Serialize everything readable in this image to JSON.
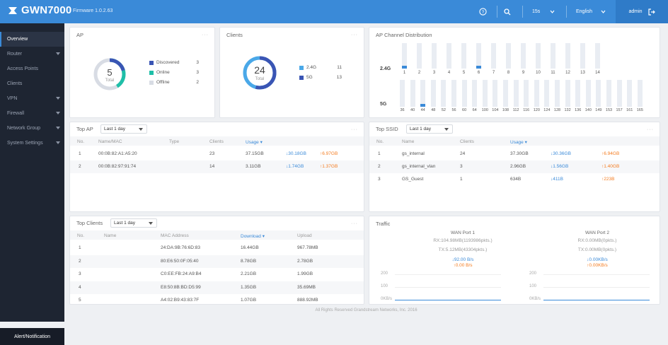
{
  "brand": {
    "name": "GWN7000",
    "firmware": "Firmware 1.0.2.63"
  },
  "topbar": {
    "refresh": "15s",
    "language": "English",
    "user": "admin"
  },
  "sidebar": {
    "items": [
      {
        "label": "Overview",
        "active": true,
        "caret": false
      },
      {
        "label": "Router",
        "caret": true
      },
      {
        "label": "Access Points",
        "caret": false
      },
      {
        "label": "Clients",
        "caret": false
      },
      {
        "label": "VPN",
        "caret": true
      },
      {
        "label": "Firewall",
        "caret": true
      },
      {
        "label": "Network Group",
        "caret": true
      },
      {
        "label": "System Settings",
        "caret": true
      }
    ],
    "alert": "Alert/Notification"
  },
  "ap": {
    "title": "AP",
    "total": "5",
    "total_label": "Total",
    "legend": [
      {
        "label": "Discovered",
        "value": "3",
        "color": "#3a55b4"
      },
      {
        "label": "Online",
        "value": "3",
        "color": "#1fbfa8"
      },
      {
        "label": "Offline",
        "value": "2",
        "color": "#d8dce4"
      }
    ]
  },
  "clients": {
    "title": "Clients",
    "total": "24",
    "total_label": "Total",
    "legend": [
      {
        "label": "2.4G",
        "value": "11",
        "color": "#4aa8e8"
      },
      {
        "label": "5G",
        "value": "13",
        "color": "#3a55b4"
      }
    ]
  },
  "channel": {
    "title": "AP Channel Distribution",
    "band24": "2.4G",
    "band5": "5G",
    "ch24": [
      "1",
      "2",
      "3",
      "4",
      "5",
      "6",
      "7",
      "8",
      "9",
      "10",
      "11",
      "12",
      "13",
      "14"
    ],
    "ch24_counts": [
      1,
      0,
      0,
      0,
      0,
      1,
      0,
      0,
      0,
      0,
      0,
      0,
      0,
      0
    ],
    "ch5": [
      "36",
      "40",
      "44",
      "48",
      "52",
      "56",
      "60",
      "64",
      "100",
      "104",
      "108",
      "112",
      "116",
      "120",
      "124",
      "128",
      "132",
      "136",
      "140",
      "149",
      "153",
      "157",
      "161",
      "165"
    ],
    "ch5_counts": [
      0,
      0,
      1,
      0,
      0,
      0,
      0,
      0,
      0,
      0,
      0,
      0,
      0,
      0,
      0,
      0,
      0,
      0,
      0,
      0,
      0,
      0,
      0,
      0
    ]
  },
  "top_ap": {
    "title": "Top AP",
    "range": "Last 1 day",
    "columns": [
      "No.",
      "Name/MAC",
      "Type",
      "Clients",
      "Usage ▾"
    ],
    "rows": [
      {
        "no": "1",
        "name": "00:0B:82:A1:A5:20",
        "type": "",
        "clients": "23",
        "usage": "37.15GB",
        "down": "↓30.18GB",
        "up": "↑6.97GB"
      },
      {
        "no": "2",
        "name": "00:0B:82:97:91:74",
        "type": "",
        "clients": "14",
        "usage": "3.11GB",
        "down": "↓1.74GB",
        "up": "↑1.37GB"
      }
    ]
  },
  "top_ssid": {
    "title": "Top SSID",
    "range": "Last 1 day",
    "columns": [
      "No.",
      "Name",
      "Clients",
      "Usage ▾"
    ],
    "rows": [
      {
        "no": "1",
        "name": "gs_internal",
        "clients": "24",
        "usage": "37.30GB",
        "down": "↓30.36GB",
        "up": "↑6.94GB"
      },
      {
        "no": "2",
        "name": "gs_internal_vlan",
        "clients": "3",
        "usage": "2.96GB",
        "down": "↓1.56GB",
        "up": "↑1.40GB"
      },
      {
        "no": "3",
        "name": "GS_Guest",
        "clients": "1",
        "usage": "634B",
        "down": "↓411B",
        "up": "↑223B"
      }
    ]
  },
  "top_clients": {
    "title": "Top Clients",
    "range": "Last 1 day",
    "columns": [
      "No.",
      "Name",
      "MAC Address",
      "Download ▾",
      "Upload"
    ],
    "rows": [
      {
        "no": "1",
        "name": "",
        "mac": "24:DA:9B:76:6D:83",
        "down": "16.44GB",
        "up": "967.78MB"
      },
      {
        "no": "2",
        "name": "",
        "mac": "80:E6:50:0F:05:40",
        "down": "8.78GB",
        "up": "2.78GB"
      },
      {
        "no": "3",
        "name": "",
        "mac": "C0:EE:FB:24:A9:B4",
        "down": "2.21GB",
        "up": "1.99GB"
      },
      {
        "no": "4",
        "name": "",
        "mac": "E8:50:8B:BD:D5:99",
        "down": "1.35GB",
        "up": "35.69MB"
      },
      {
        "no": "5",
        "name": "",
        "mac": "A4:02:B9:43:83:7F",
        "down": "1.07GB",
        "up": "888.92MB"
      }
    ]
  },
  "traffic": {
    "title": "Traffic",
    "ports": [
      {
        "name": "WAN Port 1",
        "rx": "RX:104.98MB(1193986pkts.)",
        "tx": "TX:5.12MB(43304pkts.)",
        "down_rate": "↓92.00 B/s",
        "up_rate": "↑0.00 B/s",
        "ticks": [
          "200",
          "100",
          "0KB/s"
        ]
      },
      {
        "name": "WAN Port 2",
        "rx": "RX:0.00MB(0pkts.)",
        "tx": "TX:0.00MB(0pkts.)",
        "down_rate": "↓0.00KB/s",
        "up_rate": "↑0.00KB/s",
        "ticks": [
          "200",
          "100",
          "0KB/s"
        ]
      }
    ]
  },
  "footer": "All Rights Reserved Grandstream Networks, Inc. 2016",
  "colors": {
    "accent": "#3a8ad8",
    "sidebar": "#1e2532",
    "orange": "#f47c20"
  }
}
